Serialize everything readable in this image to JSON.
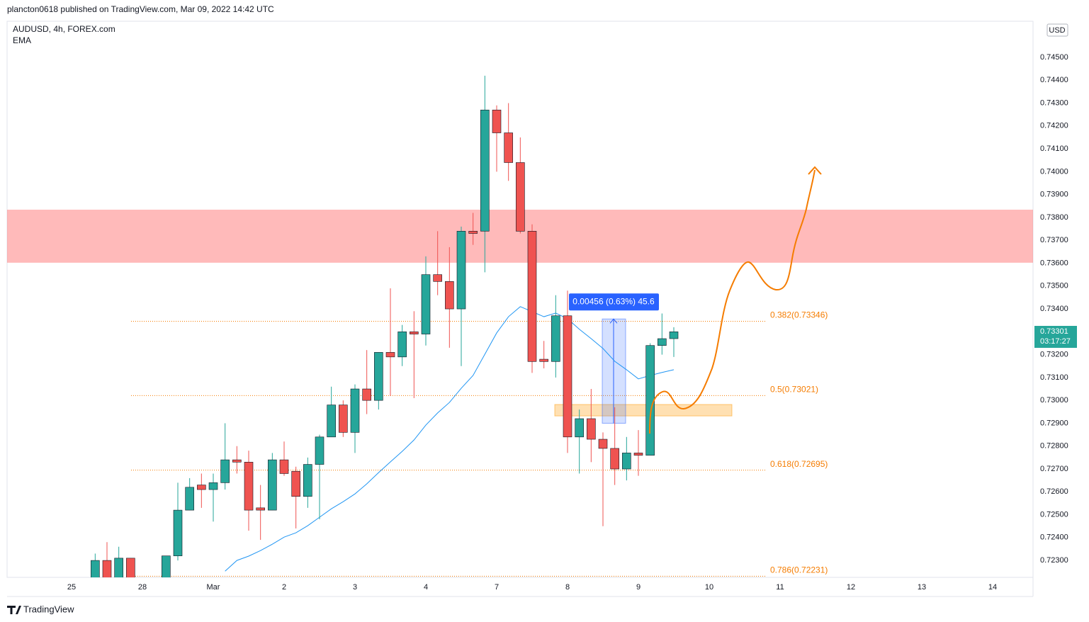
{
  "header": {
    "publisher": "plancton0618 published on TradingView.com, Mar 09, 2022 14:42 UTC",
    "symbol": "AUDUSD, 4h, FOREX.com",
    "currency": "USD",
    "footer": "TradingView"
  },
  "chart_data": {
    "type": "candlestick",
    "x": [
      2,
      3,
      4,
      5,
      8,
      9,
      10,
      11,
      12,
      13,
      14,
      15,
      16,
      17,
      18,
      19,
      20,
      21,
      22,
      23,
      24,
      25,
      26,
      27,
      28,
      29,
      30,
      31,
      32,
      33,
      34,
      35,
      36,
      37,
      38,
      39,
      40,
      41,
      42,
      43,
      44,
      45,
      46,
      47,
      48,
      49,
      50,
      51
    ],
    "open": [
      0.7222,
      0.723,
      0.7222,
      0.7231,
      0.7222,
      0.7232,
      0.7252,
      0.7263,
      0.7261,
      0.7264,
      0.7274,
      0.7273,
      0.7253,
      0.7252,
      0.7274,
      0.7269,
      0.7258,
      0.7272,
      0.7284,
      0.7298,
      0.7286,
      0.7305,
      0.73,
      0.7321,
      0.7319,
      0.733,
      0.7329,
      0.7355,
      0.7352,
      0.734,
      0.7374,
      0.7374,
      0.7427,
      0.7417,
      0.7404,
      0.7374,
      0.7318,
      0.7317,
      0.7337,
      0.7284,
      0.7292,
      0.7283,
      0.7279,
      0.727,
      0.7277,
      0.7276,
      0.7324,
      0.7327
    ],
    "high": [
      0.7233,
      0.7238,
      0.7236,
      0.7231,
      0.7232,
      0.7264,
      0.7266,
      0.7268,
      0.7268,
      0.729,
      0.728,
      0.7278,
      0.7263,
      0.7277,
      0.7282,
      0.7271,
      0.7275,
      0.7285,
      0.7306,
      0.73,
      0.7307,
      0.7322,
      0.7321,
      0.7349,
      0.7333,
      0.7339,
      0.7363,
      0.7374,
      0.7367,
      0.7376,
      0.7382,
      0.7442,
      0.7429,
      0.743,
      0.7415,
      0.7377,
      0.7326,
      0.7346,
      0.7348,
      0.7296,
      0.7305,
      0.7286,
      0.7297,
      0.7284,
      0.7287,
      0.7325,
      0.7338,
      0.7332
    ],
    "low": [
      0.722,
      0.722,
      0.722,
      0.722,
      0.722,
      0.723,
      0.7252,
      0.7253,
      0.7247,
      0.7261,
      0.7268,
      0.7243,
      0.7239,
      0.7252,
      0.7267,
      0.7244,
      0.7253,
      0.7248,
      0.7284,
      0.7284,
      0.7277,
      0.7294,
      0.7296,
      0.7302,
      0.7315,
      0.7301,
      0.7324,
      0.7346,
      0.7323,
      0.7315,
      0.7368,
      0.7356,
      0.74,
      0.7396,
      0.7373,
      0.7312,
      0.7314,
      0.731,
      0.7277,
      0.7268,
      0.7273,
      0.7245,
      0.7263,
      0.7265,
      0.7267,
      0.7276,
      0.732,
      0.7319
    ],
    "close": [
      0.723,
      0.7222,
      0.7231,
      0.7222,
      0.7232,
      0.7252,
      0.7262,
      0.7261,
      0.7264,
      0.7274,
      0.7273,
      0.7252,
      0.7252,
      0.7274,
      0.7268,
      0.7258,
      0.7272,
      0.7284,
      0.7298,
      0.7286,
      0.7305,
      0.73,
      0.7321,
      0.7319,
      0.733,
      0.7329,
      0.7355,
      0.7352,
      0.734,
      0.7374,
      0.7373,
      0.7427,
      0.7417,
      0.7404,
      0.7374,
      0.7317,
      0.7317,
      0.7337,
      0.7284,
      0.7292,
      0.7283,
      0.7279,
      0.727,
      0.7277,
      0.7276,
      0.7324,
      0.7327,
      0.733
    ],
    "up_color": "#26a69a",
    "down_color": "#ef5350",
    "ema": {
      "name": "EMA",
      "color": "#2196f3",
      "x": [
        13,
        14,
        15,
        16,
        17,
        18,
        19,
        20,
        21,
        22,
        23,
        24,
        25,
        26,
        27,
        28,
        29,
        30,
        31,
        32,
        33,
        34,
        35,
        36,
        37,
        38,
        39,
        40,
        41,
        42,
        43,
        44,
        45,
        46,
        47,
        48,
        49,
        50,
        51
      ],
      "values": [
        0.72253,
        0.723,
        0.72319,
        0.72343,
        0.72371,
        0.72402,
        0.72421,
        0.72452,
        0.72489,
        0.72526,
        0.72557,
        0.72591,
        0.72635,
        0.72684,
        0.72731,
        0.72777,
        0.72827,
        0.72892,
        0.72945,
        0.72991,
        0.73053,
        0.73109,
        0.73202,
        0.73295,
        0.73366,
        0.7341,
        0.73388,
        0.73366,
        0.73382,
        0.73357,
        0.73311,
        0.7327,
        0.73227,
        0.73171,
        0.73134,
        0.73094,
        0.73109,
        0.73122,
        0.73134
      ]
    },
    "fib_levels": [
      {
        "value": 0.73346,
        "label": "0.382(0.73346)"
      },
      {
        "value": 0.73021,
        "label": "0.5(0.73021)"
      },
      {
        "value": 0.72695,
        "label": "0.618(0.72695)"
      },
      {
        "value": 0.72231,
        "label": "0.786(0.72231)"
      }
    ],
    "resistance_zone": [
      0.73602,
      0.73834
    ],
    "support_zone": [
      0.72932,
      0.72982
    ],
    "measure": {
      "range": [
        0.729,
        0.73356
      ],
      "label": "0.00456 (0.63%) 45.6"
    },
    "last_price": 0.73301,
    "countdown": "03:17:27",
    "xlim": [
      -5.46,
      81.42
    ],
    "xticks": [
      {
        "value": 0,
        "label": "25"
      },
      {
        "value": 6,
        "label": "28"
      },
      {
        "value": 12,
        "label": "Mar"
      },
      {
        "value": 18,
        "label": "2"
      },
      {
        "value": 24,
        "label": "3"
      },
      {
        "value": 30,
        "label": "4"
      },
      {
        "value": 36,
        "label": "7"
      },
      {
        "value": 42,
        "label": "8"
      },
      {
        "value": 48,
        "label": "9"
      },
      {
        "value": 54,
        "label": "10"
      },
      {
        "value": 60,
        "label": "11"
      },
      {
        "value": 66,
        "label": "12"
      },
      {
        "value": 72,
        "label": "13"
      },
      {
        "value": 78,
        "label": "14"
      }
    ],
    "ylim": [
      0.72226,
      0.74658
    ],
    "yticks": [
      {
        "value": 0.723,
        "label": "0.72300"
      },
      {
        "value": 0.724,
        "label": "0.72400"
      },
      {
        "value": 0.725,
        "label": "0.72500"
      },
      {
        "value": 0.726,
        "label": "0.72600"
      },
      {
        "value": 0.727,
        "label": "0.72700"
      },
      {
        "value": 0.728,
        "label": "0.72800"
      },
      {
        "value": 0.729,
        "label": "0.72900"
      },
      {
        "value": 0.73,
        "label": "0.73000"
      },
      {
        "value": 0.731,
        "label": "0.73100"
      },
      {
        "value": 0.732,
        "label": "0.73200"
      },
      {
        "value": 0.733,
        "label": "0.73300"
      },
      {
        "value": 0.734,
        "label": "0.73400"
      },
      {
        "value": 0.735,
        "label": "0.73500"
      },
      {
        "value": 0.736,
        "label": "0.73600"
      },
      {
        "value": 0.737,
        "label": "0.73700"
      },
      {
        "value": 0.738,
        "label": "0.73800"
      },
      {
        "value": 0.739,
        "label": "0.73900"
      },
      {
        "value": 0.74,
        "label": "0.74000"
      },
      {
        "value": 0.741,
        "label": "0.74100"
      },
      {
        "value": 0.742,
        "label": "0.74200"
      },
      {
        "value": 0.743,
        "label": "0.74300"
      },
      {
        "value": 0.744,
        "label": "0.74400"
      },
      {
        "value": 0.745,
        "label": "0.74500"
      }
    ],
    "grid": false
  }
}
